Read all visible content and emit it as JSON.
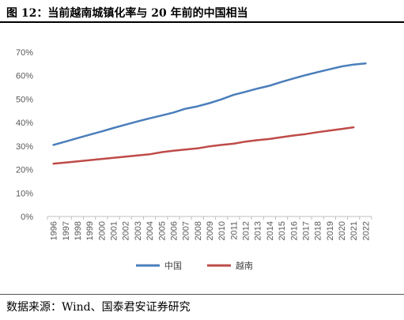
{
  "header": {
    "title": "图 12：当前越南城镇化率与 20 年前的中国相当"
  },
  "footer": {
    "source": "数据来源：Wind、国泰君安证券研究"
  },
  "chart_data": {
    "type": "line",
    "title": "",
    "xlabel": "",
    "ylabel": "",
    "x": [
      "1996",
      "1997",
      "1998",
      "1999",
      "2000",
      "2001",
      "2002",
      "2003",
      "2004",
      "2005",
      "2006",
      "2007",
      "2008",
      "2009",
      "2010",
      "2011",
      "2012",
      "2013",
      "2014",
      "2015",
      "2016",
      "2017",
      "2018",
      "2019",
      "2020",
      "2021",
      "2022"
    ],
    "ylim": [
      0,
      70
    ],
    "yticks": [
      0,
      10,
      20,
      30,
      40,
      50,
      60,
      70
    ],
    "ytick_labels": [
      "0%",
      "10%",
      "20%",
      "30%",
      "40%",
      "50%",
      "60%",
      "70%"
    ],
    "grid": false,
    "legend_position": "bottom",
    "series": [
      {
        "name": "中国",
        "color": "#4A7EBB",
        "values": [
          30.5,
          31.9,
          33.4,
          34.8,
          36.2,
          37.7,
          39.1,
          40.5,
          41.8,
          43.0,
          44.3,
          45.9,
          46.9,
          48.3,
          49.9,
          51.8,
          53.1,
          54.5,
          55.7,
          57.3,
          58.8,
          60.2,
          61.5,
          62.7,
          63.9,
          64.7,
          65.2
        ]
      },
      {
        "name": "越南",
        "color": "#BE4B48",
        "values": [
          22.5,
          23.0,
          23.5,
          24.0,
          24.5,
          25.0,
          25.5,
          26.0,
          26.5,
          27.4,
          28.0,
          28.5,
          29.0,
          29.9,
          30.5,
          31.0,
          31.9,
          32.5,
          33.0,
          33.8,
          34.5,
          35.1,
          35.9,
          36.6,
          37.3,
          38.0,
          null
        ]
      }
    ]
  }
}
